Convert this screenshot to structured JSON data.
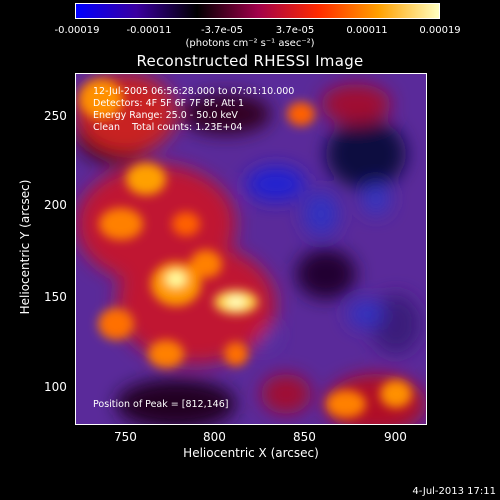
{
  "colorbar": {
    "ticks": [
      "-0.00019",
      "-0.00011",
      "-3.7e-05",
      "3.7e-05",
      "0.00011",
      "0.00019"
    ],
    "unit_label": "(photons cm⁻² s⁻¹ asec⁻²)",
    "colors": [
      "#0000ff",
      "#3a00a0",
      "#000000",
      "#a0004a",
      "#ff2a00",
      "#ffa000",
      "#ffffc0"
    ]
  },
  "plot": {
    "title": "Reconstructed RHESSI Image",
    "annotations": [
      "12-Jul-2005 06:56:28.000 to 07:01:10.000",
      "Detectors: 4F 5F 6F 7F 8F, Att 1",
      "Energy Range: 25.0 - 50.0 keV",
      "Clean    Total counts: 1.23E+04"
    ],
    "peak_label": "Position of Peak = [812,146]",
    "xlabel": "Heliocentric X (arcsec)",
    "ylabel": "Heliocentric Y (arcsec)",
    "xticks": [
      "750",
      "800",
      "850",
      "900"
    ],
    "yticks": [
      "250",
      "200",
      "150",
      "100"
    ],
    "xrange": [
      722,
      915
    ],
    "yrange": [
      78,
      272
    ]
  },
  "timestamp": "4-Jul-2013 17:11"
}
